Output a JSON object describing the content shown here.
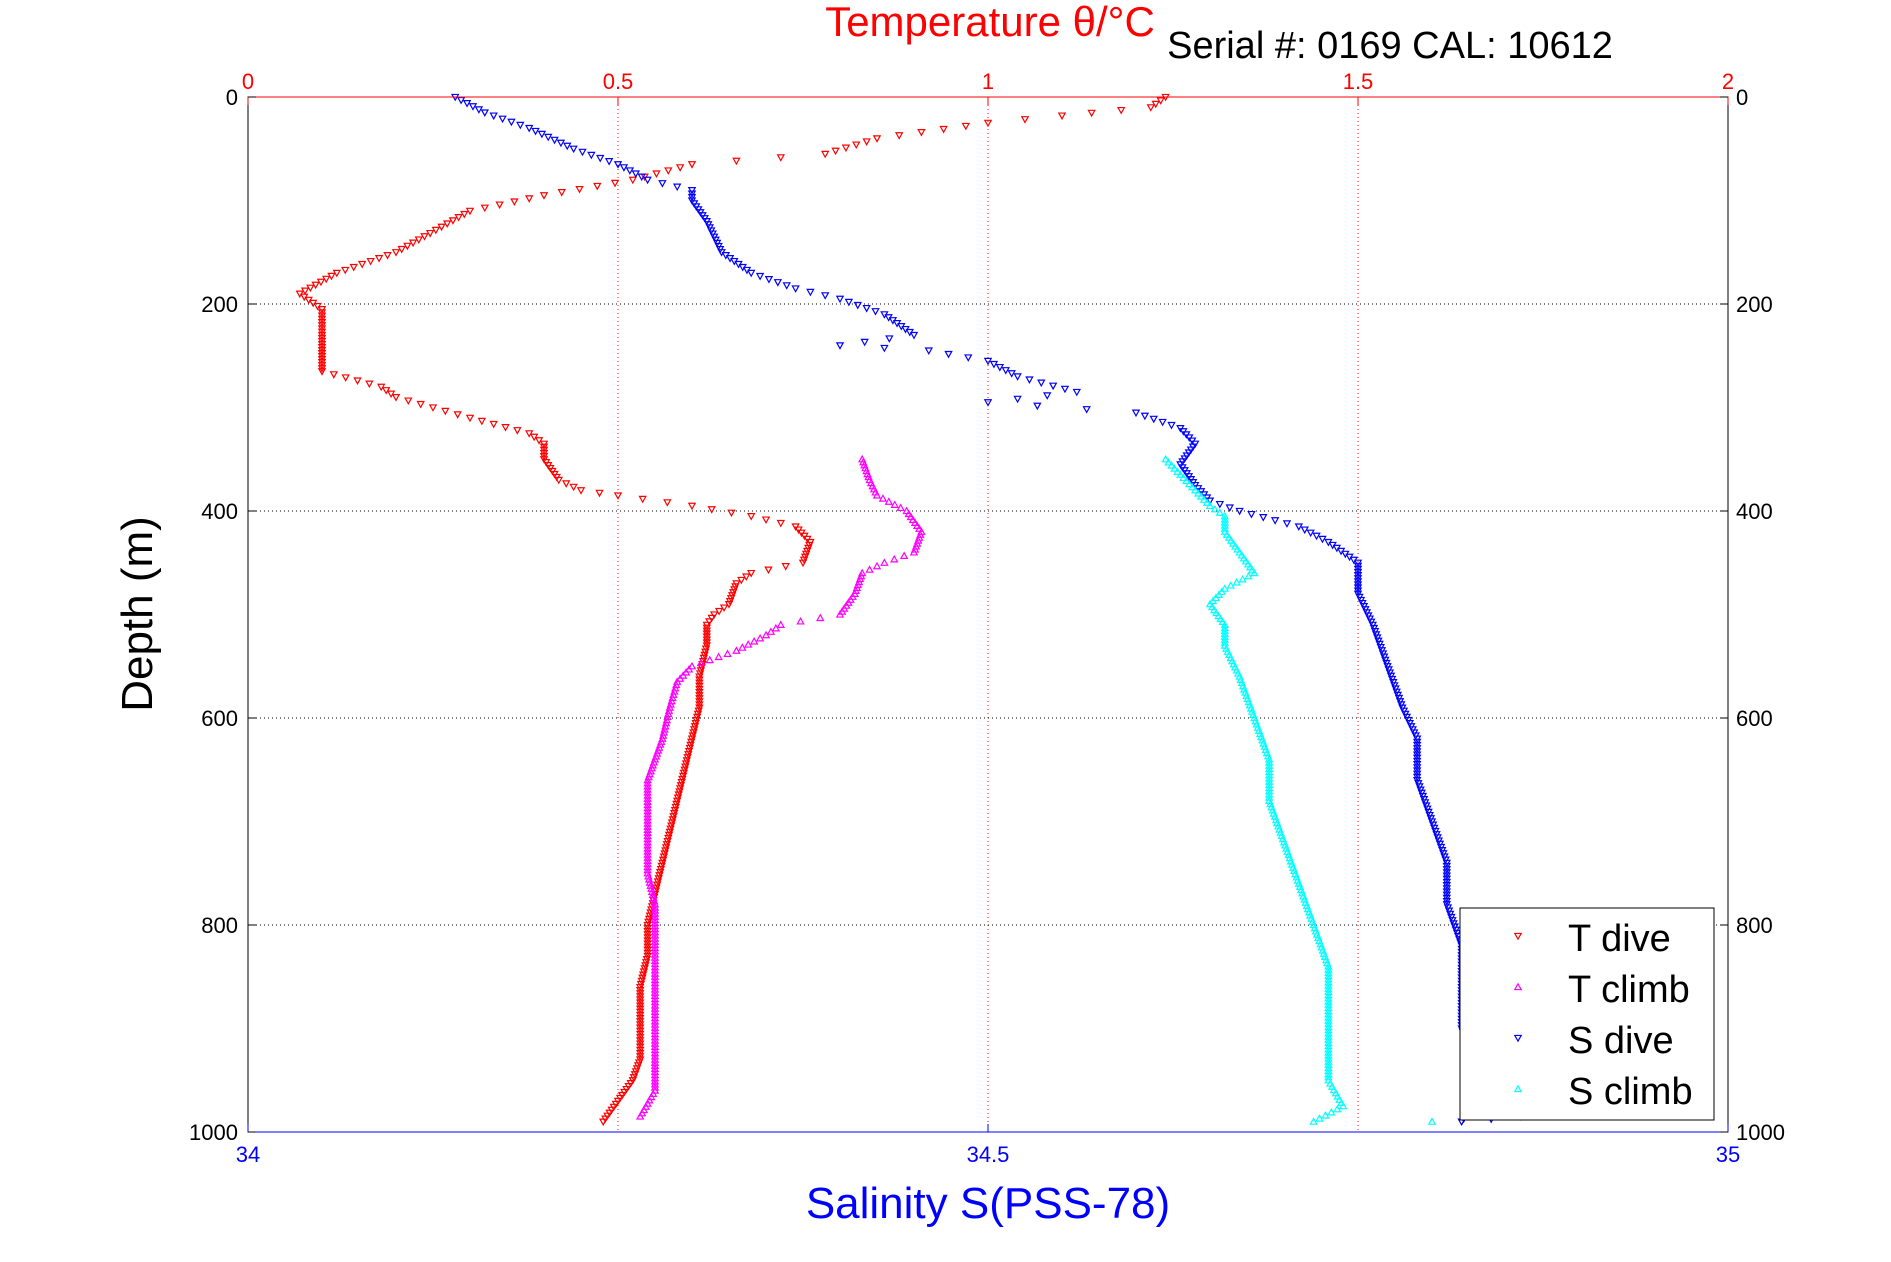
{
  "chart_data": {
    "type": "scatter",
    "title": "Temperature θ/°C",
    "serial_label": "Serial #: 0169 CAL: 10612",
    "top_axis": {
      "ticks": [
        0,
        0.5,
        1,
        1.5,
        2
      ],
      "tick_labels": [
        "0",
        "0.5",
        "1",
        "1.5",
        "2"
      ],
      "range": [
        0,
        2
      ],
      "color": "#ff0000"
    },
    "bottom_axis": {
      "label": "Salinity S(PSS-78)",
      "ticks": [
        34,
        34.5,
        35
      ],
      "tick_labels": [
        "34",
        "34.5",
        "35"
      ],
      "range": [
        34,
        35
      ],
      "color": "#0000ff"
    },
    "y_axis": {
      "label": "Depth (m)",
      "ticks": [
        0,
        200,
        400,
        600,
        800,
        1000
      ],
      "tick_labels": [
        "0",
        "200",
        "400",
        "600",
        "800",
        "1000"
      ],
      "range": [
        0,
        1000
      ],
      "reversed": true
    },
    "grid": true,
    "legend": {
      "position": "bottom-right"
    },
    "series": [
      {
        "name": "T dive",
        "axis": "temperature",
        "color": "#ff0000",
        "marker": "triangle-down",
        "points": [
          [
            1.24,
            0
          ],
          [
            1.22,
            10
          ],
          [
            1.1,
            18
          ],
          [
            1.0,
            25
          ],
          [
            0.85,
            40
          ],
          [
            0.78,
            55
          ],
          [
            0.6,
            65
          ],
          [
            0.52,
            80
          ],
          [
            0.4,
            95
          ],
          [
            0.3,
            110
          ],
          [
            0.2,
            150
          ],
          [
            0.12,
            170
          ],
          [
            0.07,
            190
          ],
          [
            0.1,
            205
          ],
          [
            0.1,
            230
          ],
          [
            0.1,
            265
          ],
          [
            0.18,
            280
          ],
          [
            0.2,
            290
          ],
          [
            0.25,
            300
          ],
          [
            0.3,
            310
          ],
          [
            0.38,
            325
          ],
          [
            0.4,
            335
          ],
          [
            0.4,
            350
          ],
          [
            0.42,
            370
          ],
          [
            0.45,
            380
          ],
          [
            0.5,
            385
          ],
          [
            0.6,
            395
          ],
          [
            0.68,
            405
          ],
          [
            0.74,
            415
          ],
          [
            0.76,
            430
          ],
          [
            0.75,
            450
          ],
          [
            0.68,
            460
          ],
          [
            0.66,
            470
          ],
          [
            0.65,
            490
          ],
          [
            0.63,
            500
          ],
          [
            0.62,
            510
          ],
          [
            0.62,
            530
          ],
          [
            0.61,
            560
          ],
          [
            0.61,
            590
          ],
          [
            0.6,
            620
          ],
          [
            0.59,
            650
          ],
          [
            0.58,
            680
          ],
          [
            0.57,
            710
          ],
          [
            0.56,
            740
          ],
          [
            0.55,
            770
          ],
          [
            0.54,
            800
          ],
          [
            0.54,
            830
          ],
          [
            0.53,
            860
          ],
          [
            0.53,
            890
          ],
          [
            0.53,
            930
          ],
          [
            0.52,
            950
          ],
          [
            0.5,
            970
          ],
          [
            0.48,
            990
          ]
        ]
      },
      {
        "name": "T climb",
        "axis": "temperature",
        "color": "#ff00ff",
        "marker": "triangle-up",
        "points": [
          [
            0.83,
            350
          ],
          [
            0.84,
            370
          ],
          [
            0.85,
            385
          ],
          [
            0.89,
            400
          ],
          [
            0.91,
            420
          ],
          [
            0.9,
            440
          ],
          [
            0.86,
            450
          ],
          [
            0.83,
            460
          ],
          [
            0.82,
            480
          ],
          [
            0.8,
            500
          ],
          [
            0.72,
            510
          ],
          [
            0.7,
            520
          ],
          [
            0.66,
            535
          ],
          [
            0.6,
            550
          ],
          [
            0.58,
            565
          ],
          [
            0.57,
            590
          ],
          [
            0.56,
            620
          ],
          [
            0.55,
            640
          ],
          [
            0.54,
            660
          ],
          [
            0.54,
            690
          ],
          [
            0.54,
            720
          ],
          [
            0.54,
            750
          ],
          [
            0.55,
            780
          ],
          [
            0.55,
            810
          ],
          [
            0.55,
            850
          ],
          [
            0.55,
            890
          ],
          [
            0.55,
            930
          ],
          [
            0.55,
            960
          ],
          [
            0.53,
            985
          ]
        ]
      },
      {
        "name": "S dive",
        "axis": "salinity",
        "color": "#0000ff",
        "marker": "triangle-down",
        "points": [
          [
            34.14,
            0
          ],
          [
            34.16,
            15
          ],
          [
            34.19,
            30
          ],
          [
            34.22,
            50
          ],
          [
            34.25,
            65
          ],
          [
            34.27,
            80
          ],
          [
            34.3,
            90
          ],
          [
            34.3,
            100
          ],
          [
            34.31,
            120
          ],
          [
            34.32,
            150
          ],
          [
            34.34,
            170
          ],
          [
            34.37,
            185
          ],
          [
            34.4,
            195
          ],
          [
            34.43,
            210
          ],
          [
            34.45,
            230
          ],
          [
            34.4,
            240
          ],
          [
            34.46,
            245
          ],
          [
            34.5,
            255
          ],
          [
            34.52,
            270
          ],
          [
            34.56,
            285
          ],
          [
            34.5,
            295
          ],
          [
            34.6,
            305
          ],
          [
            34.63,
            320
          ],
          [
            34.64,
            335
          ],
          [
            34.63,
            355
          ],
          [
            34.64,
            375
          ],
          [
            34.65,
            390
          ],
          [
            34.67,
            400
          ],
          [
            34.71,
            415
          ],
          [
            34.73,
            430
          ],
          [
            34.75,
            450
          ],
          [
            34.75,
            480
          ],
          [
            34.76,
            510
          ],
          [
            34.77,
            550
          ],
          [
            34.78,
            590
          ],
          [
            34.79,
            620
          ],
          [
            34.79,
            660
          ],
          [
            34.8,
            700
          ],
          [
            34.81,
            740
          ],
          [
            34.81,
            780
          ],
          [
            34.82,
            820
          ],
          [
            34.82,
            860
          ],
          [
            34.82,
            900
          ],
          [
            34.83,
            940
          ],
          [
            34.83,
            970
          ],
          [
            34.82,
            990
          ],
          [
            34.86,
            985
          ]
        ]
      },
      {
        "name": "S climb",
        "axis": "salinity",
        "color": "#00ffff",
        "marker": "triangle-up",
        "points": [
          [
            34.62,
            350
          ],
          [
            34.63,
            365
          ],
          [
            34.64,
            380
          ],
          [
            34.65,
            395
          ],
          [
            34.66,
            405
          ],
          [
            34.66,
            420
          ],
          [
            34.67,
            440
          ],
          [
            34.68,
            460
          ],
          [
            34.66,
            475
          ],
          [
            34.65,
            490
          ],
          [
            34.66,
            510
          ],
          [
            34.66,
            530
          ],
          [
            34.67,
            560
          ],
          [
            34.68,
            600
          ],
          [
            34.69,
            640
          ],
          [
            34.69,
            680
          ],
          [
            34.7,
            720
          ],
          [
            34.71,
            760
          ],
          [
            34.72,
            800
          ],
          [
            34.73,
            840
          ],
          [
            34.73,
            880
          ],
          [
            34.73,
            920
          ],
          [
            34.73,
            950
          ],
          [
            34.74,
            975
          ],
          [
            34.72,
            990
          ],
          [
            34.8,
            990
          ]
        ]
      }
    ]
  }
}
